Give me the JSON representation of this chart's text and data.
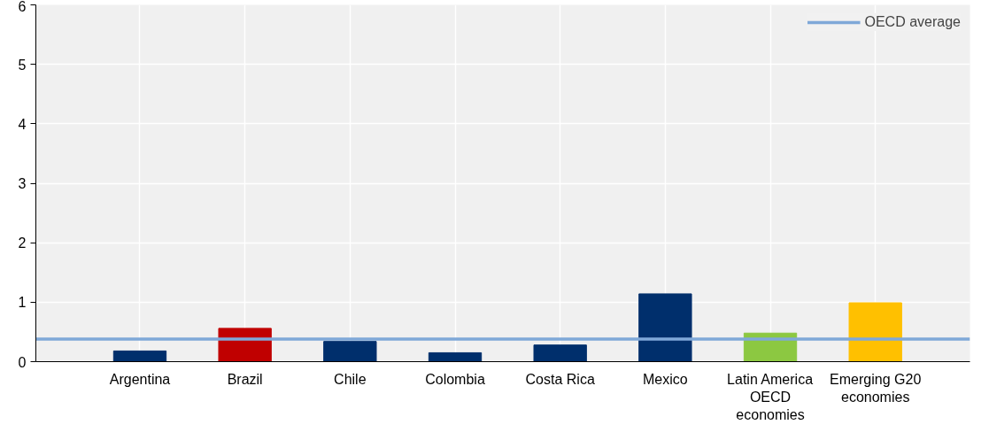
{
  "chart_data": {
    "type": "bar",
    "categories": [
      "Argentina",
      "Brazil",
      "Chile",
      "Colombia",
      "Costa Rica",
      "Mexico",
      "Latin America\nOECD\neconomies",
      "Emerging G20\neconomies"
    ],
    "values": [
      0.18,
      0.56,
      0.34,
      0.15,
      0.28,
      1.14,
      0.48,
      0.99
    ],
    "colors": [
      "#002f6c",
      "#c00000",
      "#002f6c",
      "#002f6c",
      "#002f6c",
      "#002f6c",
      "#8cc841",
      "#ffc000"
    ],
    "ylim": [
      0,
      6
    ],
    "yticks": [
      0,
      1,
      2,
      3,
      4,
      5,
      6
    ],
    "ref_lines": [
      {
        "axis": "y",
        "value": 0.38,
        "label": "OECD average",
        "color": "#7fa8d8"
      }
    ],
    "grid": true,
    "legend": "top"
  }
}
